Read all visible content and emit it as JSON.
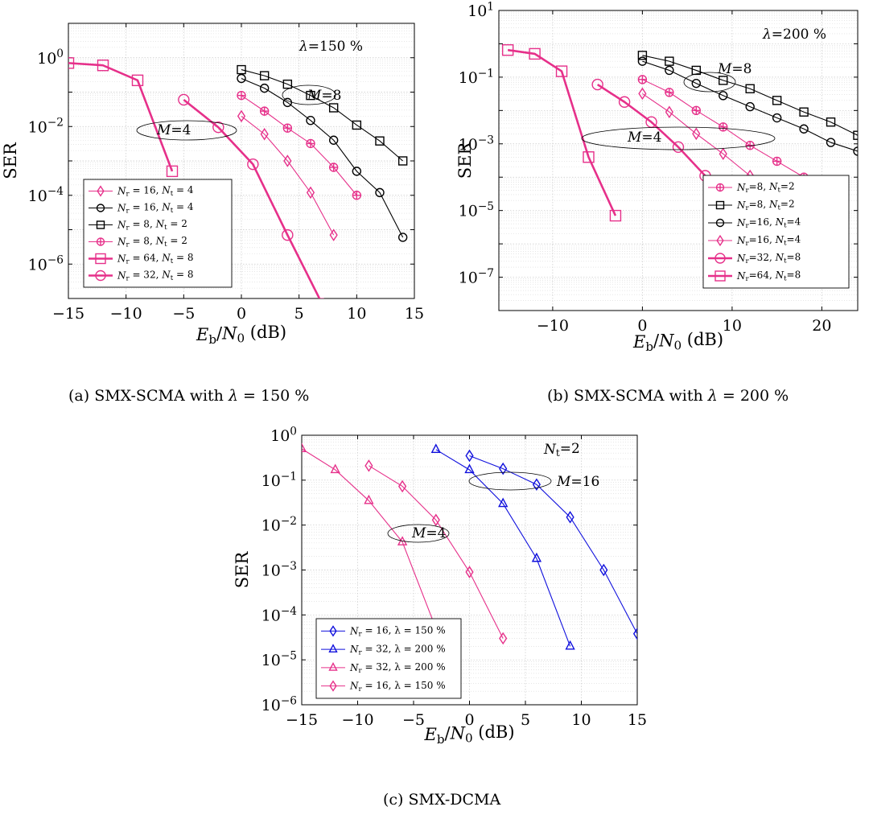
{
  "chart_data": [
    {
      "type": "line",
      "caption": "(a) SMX-SCMA with λ = 150 %",
      "xlabel": "E_b/N_0 (dB)",
      "ylabel": "SER",
      "ylog": true,
      "xlim": [
        -15,
        15
      ],
      "ylim": [
        1e-07,
        10
      ],
      "xticks": [
        -15,
        -10,
        -5,
        0,
        5,
        10,
        15
      ],
      "yticks": [
        1e-06,
        0.0001,
        0.01,
        1
      ],
      "grid": true,
      "legend_position": "bottom-left",
      "annotations": [
        "λ=150 %",
        "M=8",
        "M=4"
      ],
      "series": [
        {
          "name": "N_r = 16, N_t = 4",
          "color": "#e6308a",
          "marker": "diamond",
          "thick": false,
          "x": [
            0,
            2,
            4,
            6,
            8
          ],
          "y": [
            0.02,
            0.006,
            0.001,
            0.00012,
            7e-06
          ]
        },
        {
          "name": "N_r = 16, N_t = 4",
          "color": "#000000",
          "marker": "circle",
          "thick": false,
          "x": [
            0,
            2,
            4,
            6,
            8,
            10,
            12,
            14
          ],
          "y": [
            0.25,
            0.13,
            0.05,
            0.015,
            0.004,
            0.0005,
            0.00012,
            6e-06
          ]
        },
        {
          "name": "N_r = 8, N_t = 2",
          "color": "#000000",
          "marker": "square",
          "thick": false,
          "x": [
            0,
            2,
            4,
            6,
            8,
            10,
            12,
            14
          ],
          "y": [
            0.45,
            0.3,
            0.17,
            0.08,
            0.035,
            0.011,
            0.0038,
            0.001
          ]
        },
        {
          "name": "N_r = 8, N_t = 2",
          "color": "#e6308a",
          "marker": "oplus",
          "thick": false,
          "x": [
            0,
            2,
            4,
            6,
            8,
            10
          ],
          "y": [
            0.08,
            0.028,
            0.009,
            0.0032,
            0.00065,
            0.0001
          ]
        },
        {
          "name": "N_r = 64, N_t = 8",
          "color": "#e6308a",
          "marker": "square",
          "thick": true,
          "x": [
            -15,
            -12,
            -9,
            -6
          ],
          "y": [
            0.7,
            0.6,
            0.22,
            0.0005
          ]
        },
        {
          "name": "N_r = 32, N_t = 8",
          "color": "#e6308a",
          "marker": "circle",
          "thick": true,
          "x": [
            -5,
            -2,
            1,
            4,
            7
          ],
          "y": [
            0.06,
            0.0095,
            0.0008,
            7e-06,
            7e-08
          ]
        }
      ]
    },
    {
      "type": "line",
      "caption": "(b) SMX-SCMA with λ = 200 %",
      "xlabel": "E_b/N_0 (dB)",
      "ylabel": "SER",
      "ylog": true,
      "xlim": [
        -16,
        24
      ],
      "ylim": [
        1e-08,
        10
      ],
      "xticks": [
        -10,
        0,
        10,
        20
      ],
      "yticks": [
        1e-07,
        1e-05,
        0.001,
        0.1,
        10
      ],
      "grid": true,
      "legend_position": "bottom-right",
      "annotations": [
        "λ=200 %",
        "M=8",
        "M=4"
      ],
      "series": [
        {
          "name": "N_r=8, N_t=2",
          "color": "#e6308a",
          "marker": "oplus",
          "thick": false,
          "x": [
            0,
            3,
            6,
            9,
            12,
            15,
            18,
            21
          ],
          "y": [
            0.085,
            0.035,
            0.01,
            0.0032,
            0.0009,
            0.0003,
            0.0001,
            3e-05
          ]
        },
        {
          "name": "N_r=8, N_t=2",
          "color": "#000000",
          "marker": "square",
          "thick": false,
          "x": [
            0,
            3,
            6,
            9,
            12,
            15,
            18,
            21,
            24
          ],
          "y": [
            0.45,
            0.3,
            0.16,
            0.08,
            0.045,
            0.02,
            0.009,
            0.0045,
            0.0018
          ]
        },
        {
          "name": "N_r=16, N_t=4",
          "color": "#000000",
          "marker": "circle",
          "thick": false,
          "x": [
            0,
            3,
            6,
            9,
            12,
            15,
            18,
            21,
            24
          ],
          "y": [
            0.3,
            0.16,
            0.065,
            0.028,
            0.013,
            0.006,
            0.0028,
            0.0011,
            0.0006
          ]
        },
        {
          "name": "N_r=16, N_t=4",
          "color": "#e6308a",
          "marker": "diamond",
          "thick": false,
          "x": [
            0,
            3,
            6,
            9,
            12,
            15
          ],
          "y": [
            0.032,
            0.009,
            0.002,
            0.0005,
            0.00011,
            2e-05
          ]
        },
        {
          "name": "N_r=32, N_t=8",
          "color": "#e6308a",
          "marker": "circle",
          "thick": true,
          "x": [
            -5,
            -2,
            1,
            4,
            7,
            10
          ],
          "y": [
            0.06,
            0.018,
            0.0045,
            0.0008,
            0.00011,
            2e-05
          ]
        },
        {
          "name": "N_r=64, N_t=8",
          "color": "#e6308a",
          "marker": "square",
          "thick": true,
          "x": [
            -15,
            -12,
            -9,
            -6,
            -3
          ],
          "y": [
            0.65,
            0.5,
            0.15,
            0.0004,
            7e-06
          ]
        }
      ]
    },
    {
      "type": "line",
      "caption": "(c) SMX-DCMA",
      "xlabel": "E_b/N_0 (dB)",
      "ylabel": "SER",
      "ylog": true,
      "xlim": [
        -15,
        15
      ],
      "ylim": [
        1e-06,
        1
      ],
      "xticks": [
        -15,
        -10,
        -5,
        0,
        5,
        10,
        15
      ],
      "yticks": [
        1e-06,
        1e-05,
        0.0001,
        0.001,
        0.01,
        0.1,
        1
      ],
      "grid": true,
      "legend_position": "bottom-left",
      "annotations": [
        "N_t=2",
        "M=16",
        "M=4"
      ],
      "series": [
        {
          "name": "N_r = 16, λ = 150 %",
          "color": "#1010dd",
          "marker": "diamond",
          "thick": false,
          "x": [
            0,
            3,
            6,
            9,
            12,
            15
          ],
          "y": [
            0.35,
            0.18,
            0.08,
            0.015,
            0.001,
            3.8e-05
          ]
        },
        {
          "name": "N_r = 32, λ = 200 %",
          "color": "#1010dd",
          "marker": "triangle",
          "thick": false,
          "x": [
            -3,
            0,
            3,
            6,
            9
          ],
          "y": [
            0.48,
            0.17,
            0.03,
            0.0018,
            2e-05
          ]
        },
        {
          "name": "N_r = 32, λ = 200 %",
          "color": "#e6308a",
          "marker": "triangle",
          "thick": false,
          "x": [
            -15,
            -12,
            -9,
            -6,
            -3
          ],
          "y": [
            0.5,
            0.17,
            0.035,
            0.0042,
            5e-05
          ]
        },
        {
          "name": "N_r = 16, λ = 150 %",
          "color": "#e6308a",
          "marker": "diamond",
          "thick": false,
          "x": [
            -9,
            -6,
            -3,
            0,
            3
          ],
          "y": [
            0.21,
            0.073,
            0.013,
            0.0009,
            3e-05
          ]
        }
      ]
    }
  ]
}
